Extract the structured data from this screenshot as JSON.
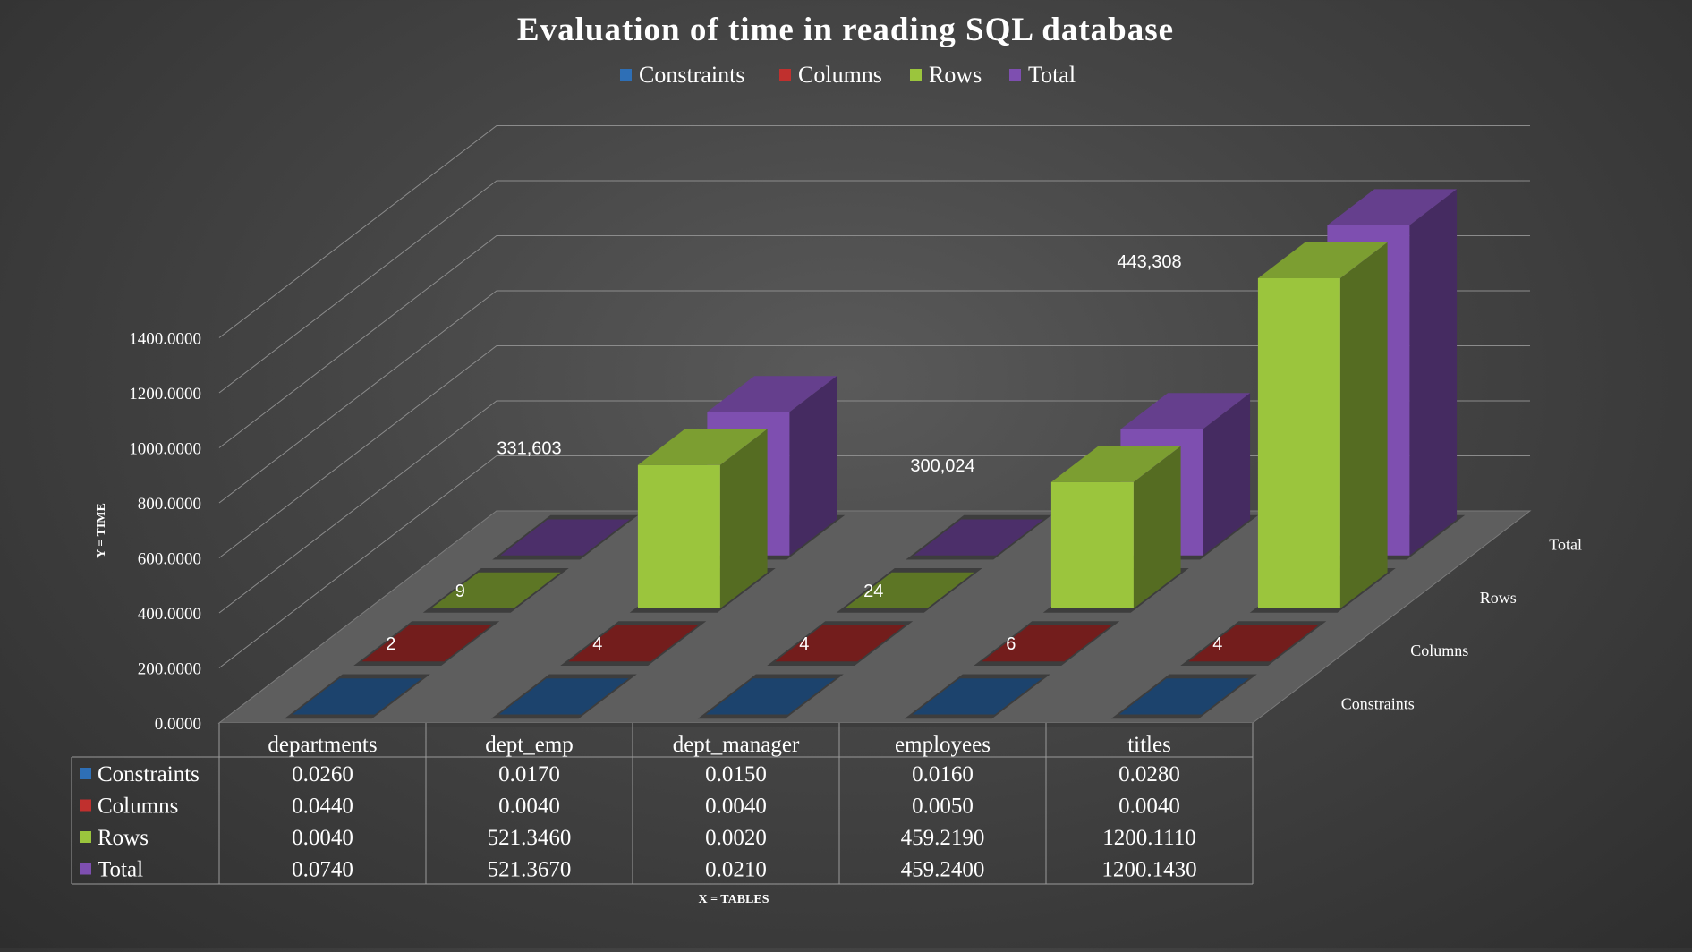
{
  "chart_data": {
    "type": "bar",
    "subtype": "3d-column",
    "title": "Evaluation of time in reading SQL database",
    "xlabel": "X = TABLES",
    "ylabel": "Y = TIME",
    "ylim": [
      0,
      1400
    ],
    "yticks": [
      "0.0000",
      "200.0000",
      "400.0000",
      "600.0000",
      "800.0000",
      "1000.0000",
      "1200.0000",
      "1400.0000"
    ],
    "grid": true,
    "legend_position": "top",
    "categories": [
      "departments",
      "dept_emp",
      "dept_manager",
      "employees",
      "titles"
    ],
    "depth_labels": [
      "Constraints",
      "Columns",
      "Rows",
      "Total"
    ],
    "series": [
      {
        "name": "Constraints",
        "color": "#2e6fb6",
        "values": [
          0.026,
          0.017,
          0.015,
          0.016,
          0.028
        ],
        "display": [
          "0.0260",
          "0.0170",
          "0.0150",
          "0.0160",
          "0.0280"
        ],
        "data_labels": [
          "",
          "",
          "",
          "",
          ""
        ]
      },
      {
        "name": "Columns",
        "color": "#c0302e",
        "values": [
          0.044,
          0.004,
          0.004,
          0.005,
          0.004
        ],
        "display": [
          "0.0440",
          "0.0040",
          "0.0040",
          "0.0050",
          "0.0040"
        ],
        "data_labels": [
          "2",
          "4",
          "4",
          "6",
          "4"
        ]
      },
      {
        "name": "Rows",
        "color": "#9bc53d",
        "values": [
          0.004,
          521.346,
          0.002,
          459.219,
          1200.111
        ],
        "display": [
          "0.0040",
          "521.3460",
          "0.0020",
          "459.2190",
          "1200.1110"
        ],
        "data_labels": [
          "9",
          "331,603",
          "24",
          "300,024",
          "443,308"
        ]
      },
      {
        "name": "Total",
        "color": "#7e4fb0",
        "values": [
          0.074,
          521.367,
          0.021,
          459.24,
          1200.143
        ],
        "display": [
          "0.0740",
          "521.3670",
          "0.0210",
          "459.2400",
          "1200.1430"
        ],
        "data_labels": [
          "",
          "",
          "",
          "",
          ""
        ]
      }
    ]
  }
}
